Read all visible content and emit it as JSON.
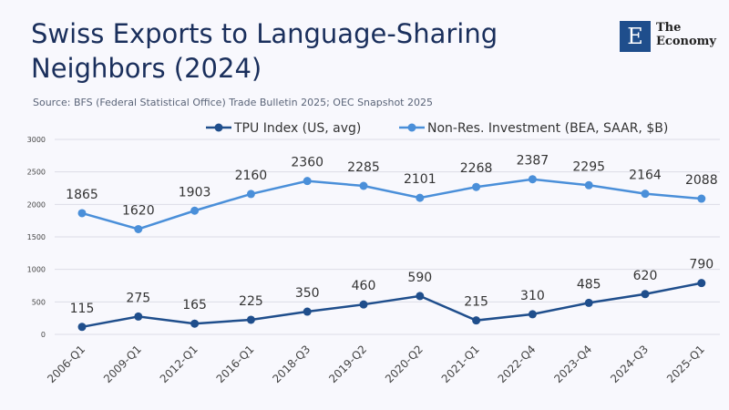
{
  "title": "Swiss Exports to Language-Sharing Neighbors (2024)",
  "source": "Source:  BFS (Federal Statistical Office) Trade Bulletin 2025; OEC Snapshot 2025",
  "logo": {
    "mark": "E",
    "line1": "The",
    "line2": "Economy"
  },
  "chart_data": {
    "type": "line",
    "title": "Swiss Exports to Language-Sharing Neighbors (2024)",
    "categories": [
      "2006-Q1",
      "2009-Q1",
      "2012-Q1",
      "2016-Q1",
      "2018-Q3",
      "2019-Q2",
      "2020-Q2",
      "2021-Q1",
      "2022-Q4",
      "2023-Q4",
      "2024-Q3",
      "2025-Q1"
    ],
    "series": [
      {
        "name": "TPU Index (US, avg)",
        "color": "#1f4e8c",
        "values": [
          115,
          275,
          165,
          225,
          350,
          460,
          590,
          215,
          310,
          485,
          620,
          790
        ]
      },
      {
        "name": "Non-Res. Investment (BEA, SAAR, $B)",
        "color": "#4a8fd9",
        "values": [
          1865,
          1620,
          1903,
          2160,
          2360,
          2285,
          2101,
          2268,
          2387,
          2295,
          2164,
          2088
        ]
      }
    ],
    "ylim": [
      0,
      3000
    ],
    "yticks": [
      0,
      500,
      1000,
      1500,
      2000,
      2500,
      3000
    ],
    "grid": true,
    "legend": "top-center",
    "data_labels": true
  }
}
